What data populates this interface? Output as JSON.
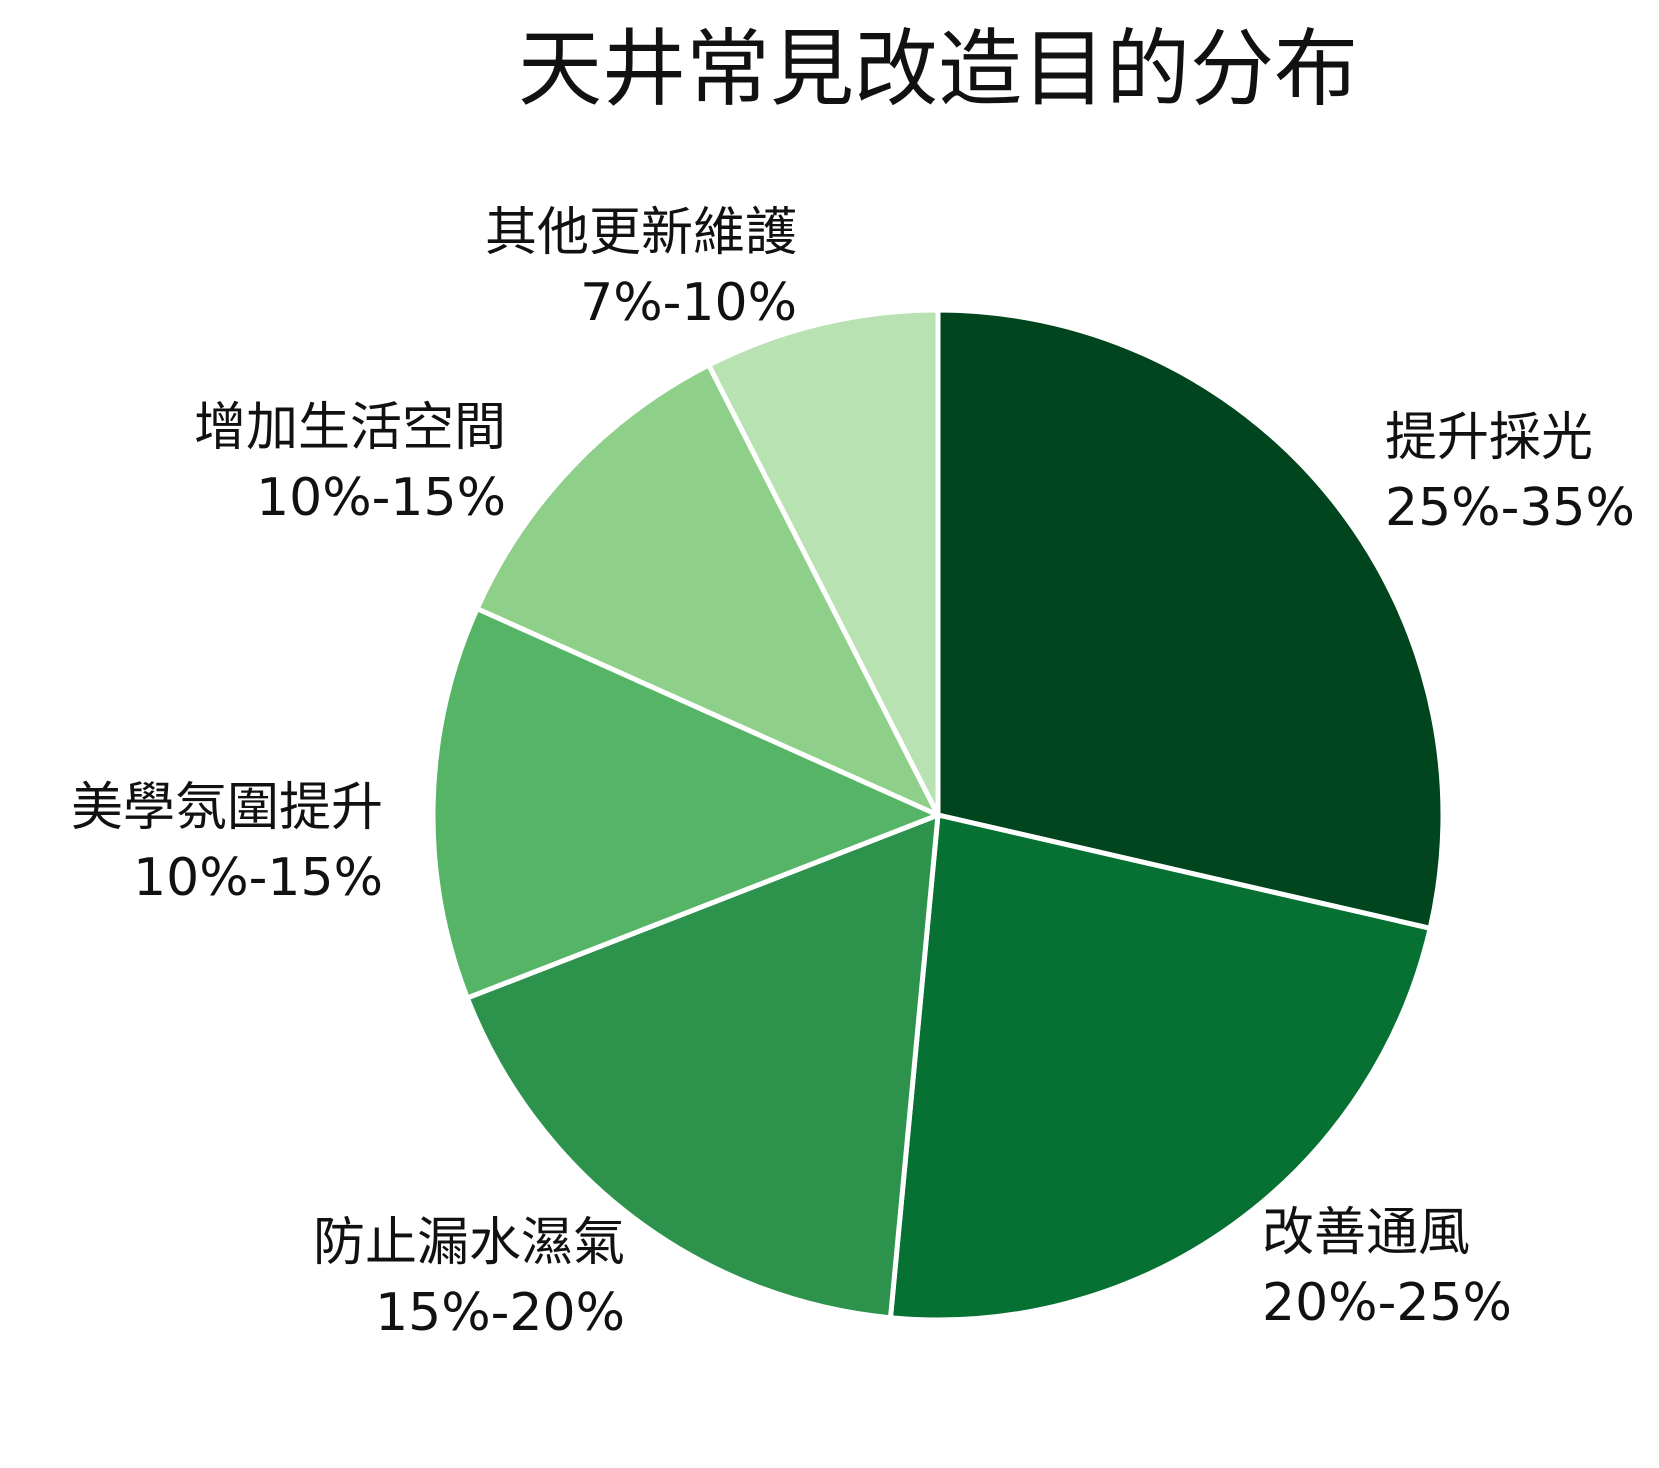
{
  "chart_data": {
    "type": "pie",
    "title": "天井常見改造目的分布",
    "slices": [
      {
        "label": "提升採光",
        "range": "25%-35%",
        "value": 28.6,
        "color": "#00451d"
      },
      {
        "label": "改善通風",
        "range": "20%-25%",
        "value": 22.9,
        "color": "#067132"
      },
      {
        "label": "防止漏水濕氣",
        "range": "15%-20%",
        "value": 17.6,
        "color": "#2d924b"
      },
      {
        "label": "美學氛圍提升",
        "range": "10%-15%",
        "value": 12.6,
        "color": "#56b467"
      },
      {
        "label": "增加生活空間",
        "range": "10%-15%",
        "value": 10.8,
        "color": "#8ecf89"
      },
      {
        "label": "其他更新維護",
        "range": "7%-10%",
        "value": 7.5,
        "color": "#b8e2b1"
      }
    ],
    "start_angle": "12 o'clock",
    "direction": "clockwise",
    "legend": "none",
    "labels": "outside"
  }
}
